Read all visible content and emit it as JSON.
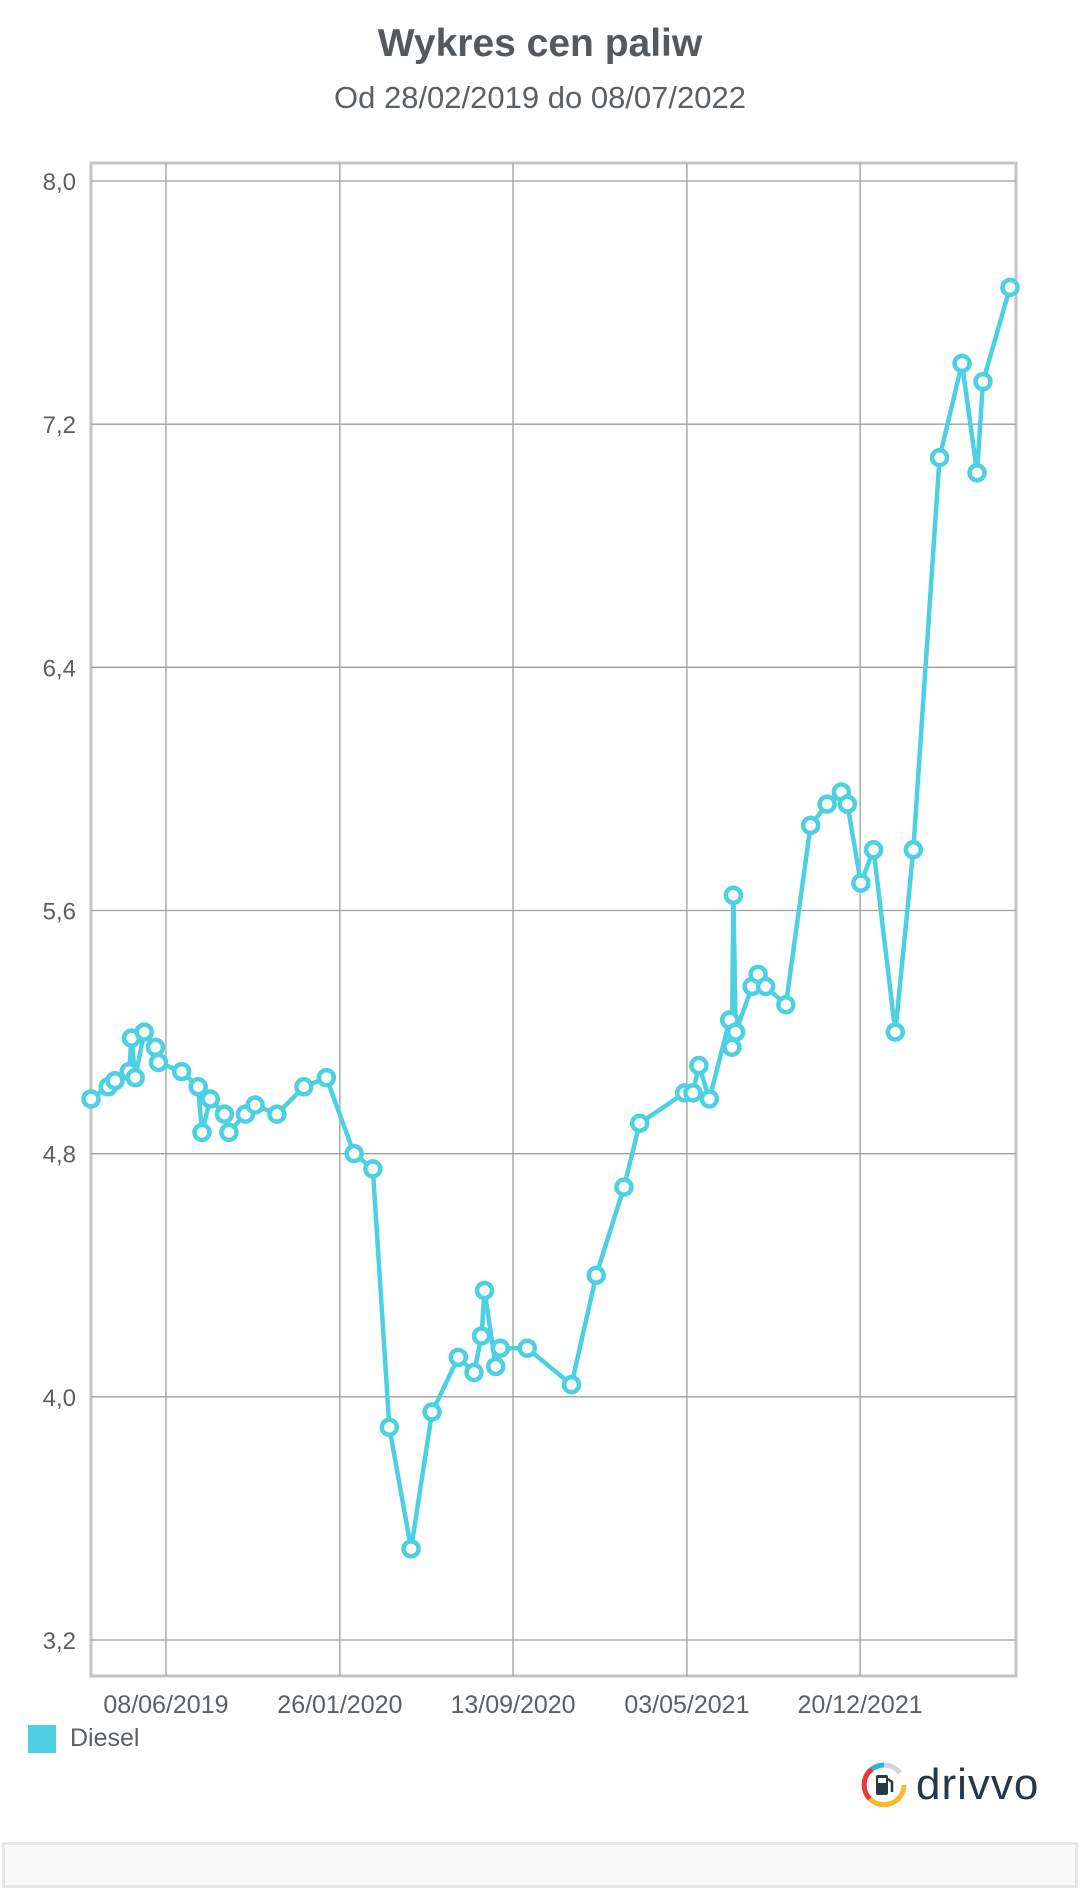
{
  "header": {
    "title": "Wykres cen paliw",
    "subtitle": "Od 28/02/2019 do 08/07/2022"
  },
  "legend": {
    "label": "Diesel"
  },
  "logo": {
    "text": "drivvo",
    "icon": "fuel-pump-icon"
  },
  "colors": {
    "series": "#4dd0e1",
    "grid": "#9e9e9e",
    "text": "#555a5e"
  },
  "chart_data": {
    "type": "line",
    "title": "Wykres cen paliw",
    "subtitle": "Od 28/02/2019 do 08/07/2022",
    "xlabel": "",
    "ylabel": "",
    "xlim": [
      "2019-02-28",
      "2022-07-08"
    ],
    "ylim": [
      3.2,
      8.0
    ],
    "yticks": [
      "3,2",
      "4,0",
      "4,8",
      "5,6",
      "6,4",
      "7,2",
      "8,0"
    ],
    "ytick_values": [
      3.2,
      4.0,
      4.8,
      5.6,
      6.4,
      7.2,
      8.0
    ],
    "xticks": [
      "08/06/2019",
      "26/01/2020",
      "13/09/2020",
      "03/05/2021",
      "20/12/2021"
    ],
    "xtick_values": [
      "2019-06-08",
      "2020-01-26",
      "2020-09-13",
      "2021-05-03",
      "2021-12-20"
    ],
    "grid": true,
    "legend_position": "bottom-left",
    "series": [
      {
        "name": "Diesel",
        "color": "#4dd0e1",
        "x": [
          "2019-02-28",
          "2019-03-23",
          "2019-04-01",
          "2019-04-20",
          "2019-04-23",
          "2019-04-28",
          "2019-05-10",
          "2019-05-25",
          "2019-05-29",
          "2019-06-29",
          "2019-07-21",
          "2019-07-26",
          "2019-08-06",
          "2019-08-25",
          "2019-08-31",
          "2019-09-22",
          "2019-10-05",
          "2019-11-03",
          "2019-12-09",
          "2020-01-08",
          "2020-02-14",
          "2020-03-10",
          "2020-04-01",
          "2020-04-30",
          "2020-05-28",
          "2020-07-02",
          "2020-07-23",
          "2020-08-02",
          "2020-08-06",
          "2020-08-21",
          "2020-08-27",
          "2020-10-02",
          "2020-11-30",
          "2021-01-02",
          "2021-02-08",
          "2021-03-01",
          "2021-04-30",
          "2021-05-11",
          "2021-05-19",
          "2021-06-02",
          "2021-06-29",
          "2021-07-02",
          "2021-07-04",
          "2021-07-07",
          "2021-07-29",
          "2021-08-06",
          "2021-08-16",
          "2021-09-12",
          "2021-10-15",
          "2021-11-06",
          "2021-11-25",
          "2021-12-03",
          "2021-12-21",
          "2022-01-07",
          "2022-02-05",
          "2022-03-01",
          "2022-04-05",
          "2022-05-05",
          "2022-05-25",
          "2022-06-02",
          "2022-07-08"
        ],
        "values": [
          4.98,
          5.02,
          5.04,
          5.07,
          5.18,
          5.05,
          5.2,
          5.15,
          5.1,
          5.07,
          5.02,
          4.87,
          4.98,
          4.93,
          4.87,
          4.93,
          4.96,
          4.93,
          5.02,
          5.05,
          4.8,
          4.75,
          3.9,
          3.5,
          3.95,
          4.13,
          4.08,
          4.2,
          4.35,
          4.1,
          4.16,
          4.16,
          4.04,
          4.4,
          4.69,
          4.9,
          5.0,
          5.0,
          5.09,
          4.98,
          5.24,
          5.15,
          5.65,
          5.2,
          5.35,
          5.39,
          5.35,
          5.29,
          5.88,
          5.95,
          5.99,
          5.95,
          5.69,
          5.8,
          5.2,
          5.8,
          7.09,
          7.4,
          7.04,
          7.34,
          7.65
        ]
      }
    ]
  }
}
